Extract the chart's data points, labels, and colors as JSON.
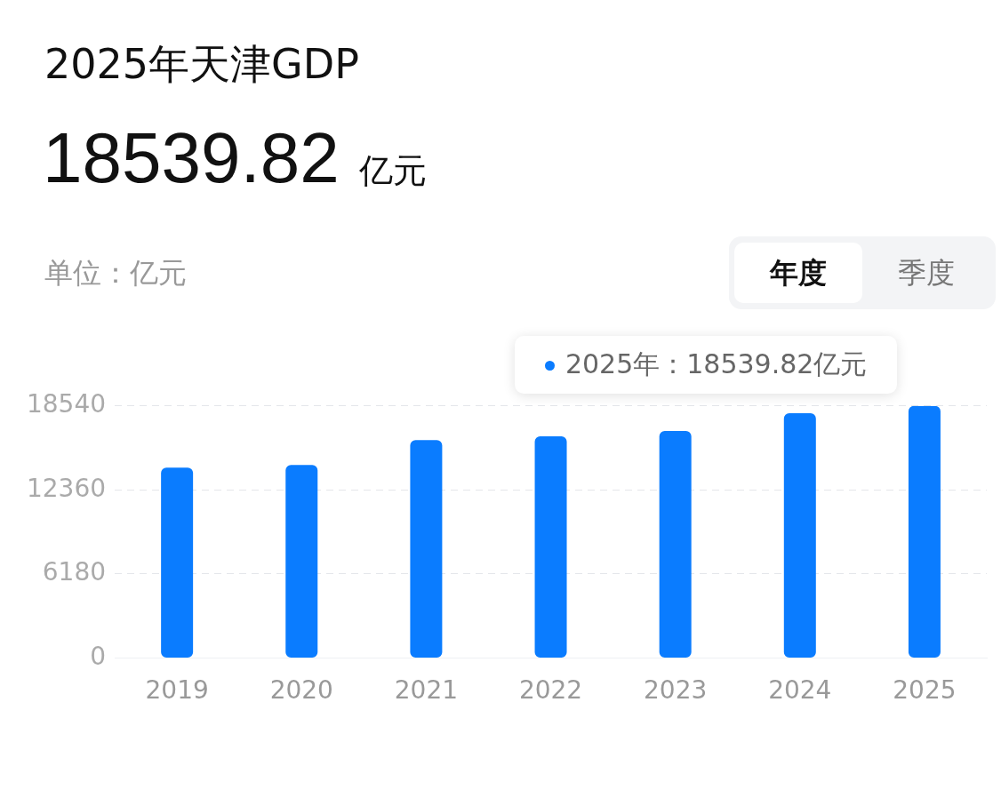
{
  "chart_data": {
    "type": "bar",
    "title": "2025年天津GDP",
    "subtitle": "18539.82 亿元",
    "ylabel": "单位：亿元",
    "categories": [
      "2019",
      "2020",
      "2021",
      "2022",
      "2023",
      "2024",
      "2025"
    ],
    "series": [
      {
        "color": "#0a7cff",
        "values": [
          14000,
          14200,
          16020,
          16300,
          16700,
          18000,
          18539.82
        ]
      }
    ],
    "ylim": [
      0,
      18540
    ],
    "yticks": [
      0,
      6180,
      12360,
      18540
    ],
    "grid": "y",
    "legend": false,
    "annotations": [
      "年度",
      "季度",
      {
        "text": "2025年：18539.82亿元",
        "x": "2025",
        "y": 18539.82
      }
    ]
  }
}
